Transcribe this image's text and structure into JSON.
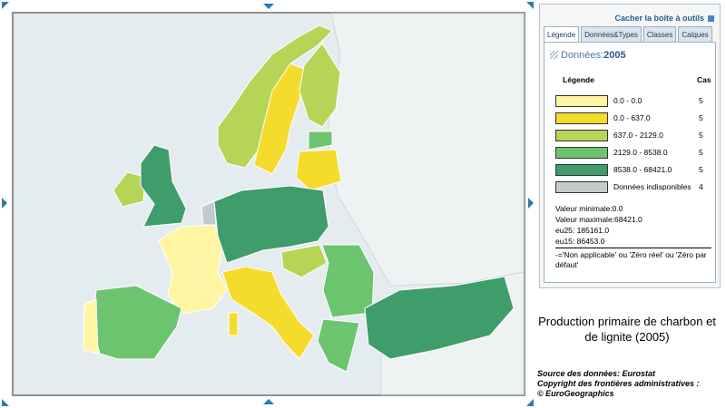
{
  "toolbox": {
    "hide_label": "Cacher la boîte à outils",
    "tabs": [
      "Légende",
      "Données&Types",
      "Classes",
      "Calques"
    ],
    "data_label": "Données:",
    "year": "2005",
    "legend_header": "Légende",
    "count_header": "Cas",
    "rows": [
      {
        "label": "0.0 - 0.0",
        "count": 5,
        "color": "#fff5a3"
      },
      {
        "label": "0.0 - 637.0",
        "count": 5,
        "color": "#f5dc2c"
      },
      {
        "label": "637.0 - 2129.0",
        "count": 5,
        "color": "#b6d455"
      },
      {
        "label": "2129.0 - 8538.0",
        "count": 5,
        "color": "#6cc46f"
      },
      {
        "label": "8538.0 - 68421.0",
        "count": 5,
        "color": "#3f9d6c"
      },
      {
        "label": "Données indisponibles",
        "count": 4,
        "color": "#c5cbcb"
      }
    ],
    "stats": [
      "Valeur minimale:0.0",
      "Valeur maximale:68421.0",
      "eu25: 185161.0",
      "eu15: 86453.0"
    ],
    "note": "-='Non applicable' ou 'Zéro réel' ou 'Zéro par défaut'"
  },
  "title": "Production primaire de charbon et de lignite (2005)",
  "source": [
    "Source des données: Eurostat",
    "Copyright des frontières administratives :",
    "© EuroGeographics"
  ]
}
